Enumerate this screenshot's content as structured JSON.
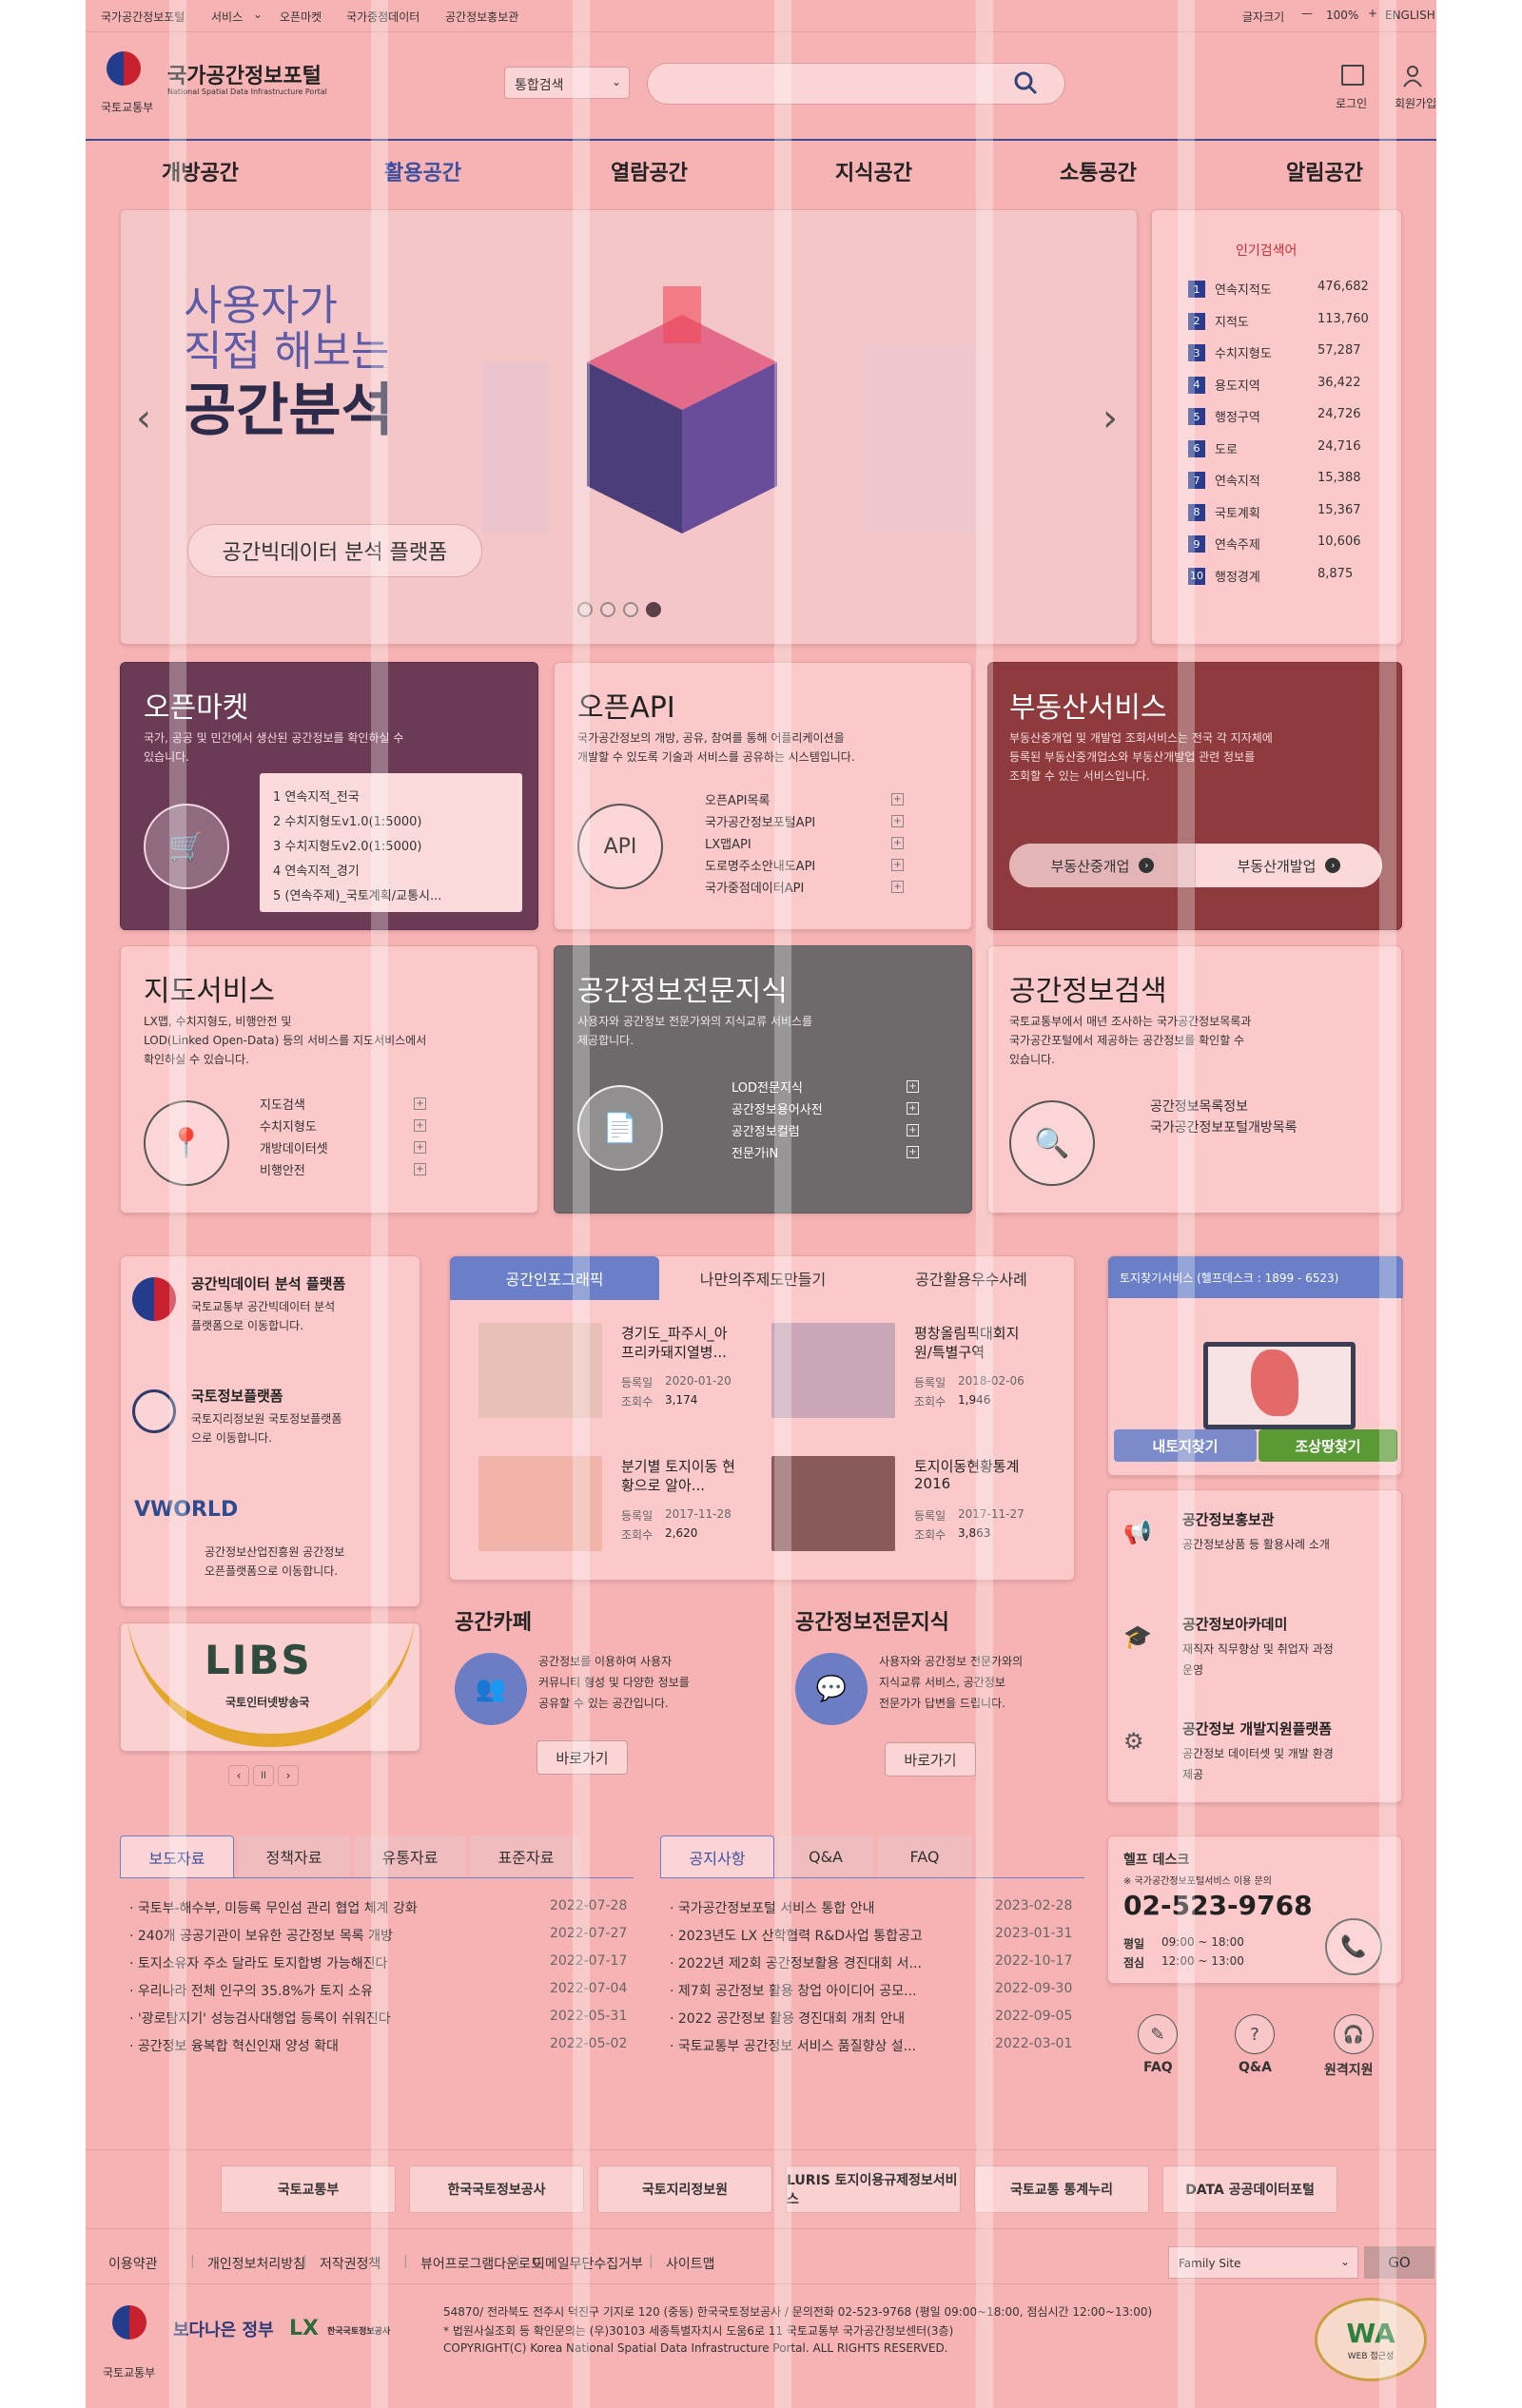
{
  "topbar": {
    "links": [
      "국가공간정보포털",
      "서비스",
      "오픈마켓",
      "국가중점데이터",
      "공간정보홍보관"
    ],
    "font_size": "글자크기",
    "zoom": "100%",
    "english": "ENGLISH"
  },
  "header": {
    "ministry": "국토교통부",
    "title": "국가공간정보포털",
    "subtitle": "National Spatial Data Infrastructure Portal",
    "search_select": "통합검색",
    "login": "로그인",
    "join": "회원가입"
  },
  "nav": [
    "개방공간",
    "활용공간",
    "열람공간",
    "지식공간",
    "소통공간",
    "알림공간"
  ],
  "banner": {
    "line1": "사용자가",
    "line2": "직접 해보는",
    "line3": "공간분석",
    "button": "공간빅데이터 분석 플랫폼"
  },
  "popular": {
    "title": "인기검색어",
    "items": [
      {
        "rank": "1",
        "term": "연속지적도",
        "count": "476,682"
      },
      {
        "rank": "2",
        "term": "지적도",
        "count": "113,760"
      },
      {
        "rank": "3",
        "term": "수치지형도",
        "count": "57,287"
      },
      {
        "rank": "4",
        "term": "용도지역",
        "count": "36,422"
      },
      {
        "rank": "5",
        "term": "행정구역",
        "count": "24,726"
      },
      {
        "rank": "6",
        "term": "도로",
        "count": "24,716"
      },
      {
        "rank": "7",
        "term": "연속지적",
        "count": "15,388"
      },
      {
        "rank": "8",
        "term": "국토계획",
        "count": "15,367"
      },
      {
        "rank": "9",
        "term": "연속주제",
        "count": "10,606"
      },
      {
        "rank": "10",
        "term": "행정경계",
        "count": "8,875"
      }
    ]
  },
  "openmarket": {
    "title": "오픈마켓",
    "desc1": "국가, 공공 및 민간에서 생산된 공간정보를 확인하실 수",
    "desc2": "있습니다.",
    "items": [
      "1  연속지적_전국",
      "2  수치지형도v1.0(1:5000)",
      "3  수치지형도v2.0(1:5000)",
      "4  연속지적_경기",
      "5  (연속주제)_국토계획/교통시..."
    ]
  },
  "openapi": {
    "title": "오픈API",
    "desc1": "국가공간정보의 개방, 공유, 참여를 통해 어플리케이션을",
    "desc2": "개발할 수 있도록 기술과 서비스를 공유하는 시스템입니다.",
    "items": [
      "오픈API목록",
      "국가공간정보포털API",
      "LX맵API",
      "도로명주소안내도API",
      "국가중점데이터API"
    ]
  },
  "realestate": {
    "title": "부동산서비스",
    "desc1": "부동산중개업 및 개발업 조회서비스는 전국 각 지자체에",
    "desc2": "등록된 부동산중개업소와 부동산개발업 관련 정보를",
    "desc3": "조회할 수 있는 서비스입니다.",
    "btn1": "부동산중개업",
    "btn2": "부동산개발업"
  },
  "mapservice": {
    "title": "지도서비스",
    "desc1": "LX맵, 수치지형도, 비행안전 및",
    "desc2": "LOD(Linked Open-Data) 등의 서비스를 지도서비스에서",
    "desc3": "확인하실 수 있습니다.",
    "items": [
      "지도검색",
      "수치지형도",
      "개방데이터셋",
      "비행안전"
    ]
  },
  "expert": {
    "title": "공간정보전문지식",
    "desc1": "사용자와 공간정보 전문가와의 지식교류 서비스를",
    "desc2": "제공합니다.",
    "items": [
      "LOD전문지식",
      "공간정보용어사전",
      "공간정보컬럼",
      "전문가iN"
    ]
  },
  "spatialsearch": {
    "title": "공간정보검색",
    "desc1": "국토교통부에서 매년 조사하는 국가공간정보목록과",
    "desc2": "국가공간포털에서 제공하는 공간정보를 확인할 수",
    "desc3": "있습니다.",
    "items": [
      "공간정보목록정보",
      "국가공간정보포털개방목록"
    ]
  },
  "platforms": [
    {
      "title": "공간빅데이터 분석 플랫폼",
      "desc1": "국토교통부 공간빅데이터 분석",
      "desc2": "플랫폼으로 이동합니다."
    },
    {
      "title": "국토정보플랫폼",
      "desc1": "국토지리정보원 국토정보플랫폼",
      "desc2": "으로 이동합니다."
    },
    {
      "title": "VWORLD",
      "desc1": "공간정보산업진흥원 공간정보",
      "desc2": "오픈플랫폼으로 이동합니다."
    }
  ],
  "libs": {
    "logo": "LIBS",
    "sub": "국토인터넷방송국"
  },
  "infographic": {
    "tabs": [
      "공간인포그래픽",
      "나만의주제도만들기",
      "공간활용우수사례"
    ],
    "items": [
      {
        "title1": "경기도_파주시_아",
        "title2": "프리카돼지열병...",
        "date": "2020-01-20",
        "views": "3,174"
      },
      {
        "title1": "평창올림픽대회지",
        "title2": "원/특별구역",
        "date": "2018-02-06",
        "views": "1,946"
      },
      {
        "title1": "분기별 토지이동 현",
        "title2": "황으로 알아...",
        "date": "2017-11-28",
        "views": "2,620"
      },
      {
        "title1": "토지이동현황통계",
        "title2": "2016",
        "date": "2017-11-27",
        "views": "3,863"
      }
    ],
    "date_label": "등록일",
    "views_label": "조회수"
  },
  "cafe": {
    "title": "공간카페",
    "desc1": "공간정보를 이용하여 사용자",
    "desc2": "커뮤니티 형성 및 다양한 정보를",
    "desc3": "공유할 수 있는 공간입니다.",
    "btn": "바로가기"
  },
  "knowledge": {
    "title": "공간정보전문지식",
    "desc1": "사용자와 공간정보 전문가와의",
    "desc2": "지식교류 서비스, 공간정보",
    "desc3": "전문가가 답변을 드립니다.",
    "btn": "바로가기"
  },
  "landfind": {
    "title": "토지찾기서비스 (헬프데스크 : 1899 - 6523)",
    "btn1": "내토지찾기",
    "btn2": "조상땅찾기"
  },
  "sidelinks": [
    {
      "title": "공간정보홍보관",
      "desc1": "공간정보상품 등 활용사례 소개",
      "desc2": ""
    },
    {
      "title": "공간정보아카데미",
      "desc1": "재직자 직무향상 및 취업자 과정",
      "desc2": "운영"
    },
    {
      "title": "공간정보 개발지원플랫폼",
      "desc1": "공간정보 데이터셋 및 개발 환경",
      "desc2": "제공"
    }
  ],
  "press": {
    "tabs": [
      "보도자료",
      "정책자료",
      "유통자료",
      "표준자료"
    ],
    "items": [
      {
        "title": "· 국토부-해수부, 미등록 무인섬 관리 협업 체계 강화",
        "date": "2022-07-28"
      },
      {
        "title": "· 240개 공공기관이 보유한 공간정보 목록 개방",
        "date": "2022-07-27"
      },
      {
        "title": "· 토지소유자 주소 달라도 토지합병 가능해진다",
        "date": "2022-07-17"
      },
      {
        "title": "· 우리나라 전체 인구의 35.8%가 토지 소유",
        "date": "2022-07-04"
      },
      {
        "title": "· '광로탐지기' 성능검사대행업 등록이 쉬워진다",
        "date": "2022-05-31"
      },
      {
        "title": "· 공간정보 융복합 혁신인재 양성 확대",
        "date": "2022-05-02"
      }
    ]
  },
  "notice": {
    "tabs": [
      "공지사항",
      "Q&A",
      "FAQ"
    ],
    "items": [
      {
        "title": "· 국가공간정보포털 서비스 통합 안내",
        "date": "2023-02-28"
      },
      {
        "title": "· 2023년도 LX 산학협력 R&D사업 통합공고",
        "date": "2023-01-31"
      },
      {
        "title": "· 2022년 제2회 공간정보활용 경진대회 서...",
        "date": "2022-10-17"
      },
      {
        "title": "· 제7회 공간정보 활용 창업 아이디어 공모...",
        "date": "2022-09-30"
      },
      {
        "title": "· 2022 공간정보 활용 경진대회 개최 안내",
        "date": "2022-09-05"
      },
      {
        "title": "· 국토교통부 공간정보 서비스 품질향상 설...",
        "date": "2022-03-01"
      }
    ]
  },
  "helpdesk": {
    "title": "헬프 데스크",
    "note": "※ 국가공간정보포털서비스 이용 문의",
    "phone": "02-523-9768",
    "weekday_label": "평일",
    "weekday": "09:00 ~ 18:00",
    "lunch_label": "점심",
    "lunch": "12:00 ~ 13:00",
    "faq": "FAQ",
    "qna": "Q&A",
    "remote": "원격지원"
  },
  "partners": [
    "국토교통부",
    "한국국토정보공사",
    "국토지리정보원",
    "LURIS 토지이용규제정보서비스",
    "국토교통 통계누리",
    "DATA 공공데이터포털"
  ],
  "footer": {
    "links": [
      "이용약관",
      "개인정보처리방침",
      "저작권정책",
      "뷰어프로그램다운로드",
      "이메일무단수집거부",
      "사이트맵"
    ],
    "family": "Family Site",
    "go": "GO",
    "addr1": "54870/ 전라북도 전주시 덕진구 기지로 120 (중동) 한국국토정보공사 / 문의전화 02-523-9768 (평일 09:00~18:00, 점심시간 12:00~13:00)",
    "addr2": "* 법원사실조회 등 확인문의는 (우)30103 세종특별자치시 도움6로 11 국토교통부 국가공간정보센터(3층)",
    "copyright": "COPYRIGHT(C) Korea National Spatial Data Infrastructure Portal. ALL RIGHTS RESERVED.",
    "gov_slogan": "보다나은 정부",
    "lx": "한국국토정보공사",
    "wa": "WA",
    "wa_sub": "WEB 접근성"
  }
}
